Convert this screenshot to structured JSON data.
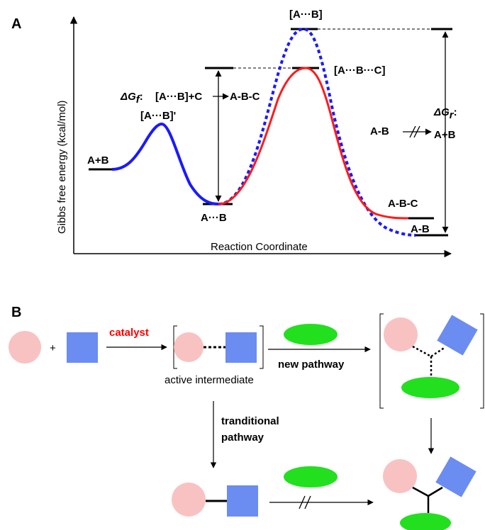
{
  "panel_a": {
    "label": "A",
    "y_axis_label": "Gibbs free energy (kcal/mol)",
    "x_axis_label": "Reaction Coordinate",
    "states": {
      "reactants": "A+B",
      "ts1": "[A···B]'",
      "intermediate": "A···B",
      "ts_blue": "[A···B]",
      "ts_red": "[A···B···C]",
      "product_red": "A-B-C",
      "product_blue": "A-B"
    },
    "delta_gf": {
      "symbol": "ΔG",
      "subscript": "f",
      "colon": ":",
      "reaction": "[A···B]+C",
      "product": "A-B-C"
    },
    "delta_gr": {
      "symbol": "ΔG",
      "subscript": "r",
      "colon": ":",
      "reactant": "A-B",
      "product": "A+B"
    },
    "colors": {
      "blue": "#1a1aff",
      "red": "#ff1a1a"
    }
  },
  "panel_b": {
    "label": "B",
    "plus": "+",
    "catalyst": "catalyst",
    "active_intermediate": "active intermediate",
    "new_pathway": "new pathway",
    "traditional_line1": "tranditional",
    "traditional_line2": "pathway",
    "colors": {
      "pink": "#f9c2c2",
      "blue_square": "#6b8cf0",
      "green": "#22e01e",
      "catalyst_red": "#ff0000"
    }
  }
}
